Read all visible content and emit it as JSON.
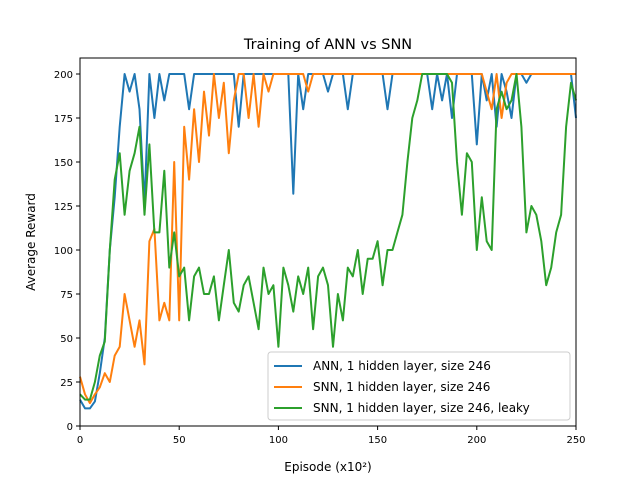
{
  "chart_data": {
    "type": "line",
    "title": "Training of ANN vs SNN",
    "xlabel": "Episode (x10²)",
    "ylabel": "Average Reward",
    "xlim": [
      0,
      250
    ],
    "ylim": [
      0,
      200
    ],
    "xticks": [
      0,
      50,
      100,
      150,
      200,
      250
    ],
    "yticks": [
      0,
      25,
      50,
      75,
      100,
      125,
      150,
      175,
      200
    ],
    "grid": false,
    "legend_position": "lower-right",
    "x": [
      0,
      2.5,
      5,
      7.5,
      10,
      12.5,
      15,
      17.5,
      20,
      22.5,
      25,
      27.5,
      30,
      32.5,
      35,
      37.5,
      40,
      42.5,
      45,
      47.5,
      50,
      52.5,
      55,
      57.5,
      60,
      62.5,
      65,
      67.5,
      70,
      72.5,
      75,
      77.5,
      80,
      82.5,
      85,
      87.5,
      90,
      92.5,
      95,
      97.5,
      100,
      102.5,
      105,
      107.5,
      110,
      112.5,
      115,
      117.5,
      120,
      122.5,
      125,
      127.5,
      130,
      132.5,
      135,
      137.5,
      140,
      142.5,
      145,
      147.5,
      150,
      152.5,
      155,
      157.5,
      160,
      162.5,
      165,
      167.5,
      170,
      172.5,
      175,
      177.5,
      180,
      182.5,
      185,
      187.5,
      190,
      192.5,
      195,
      197.5,
      200,
      202.5,
      205,
      207.5,
      210,
      212.5,
      215,
      217.5,
      220,
      222.5,
      225,
      227.5,
      230,
      232.5,
      235,
      237.5,
      240,
      242.5,
      245,
      247.5,
      250
    ],
    "series": [
      {
        "name": "ANN, 1 hidden layer, size 246",
        "color": "#1f77b4",
        "values": [
          15,
          10,
          10,
          14,
          30,
          50,
          100,
          130,
          170,
          200,
          190,
          200,
          180,
          126,
          200,
          175,
          200,
          185,
          200,
          200,
          200,
          200,
          180,
          200,
          200,
          200,
          200,
          200,
          200,
          200,
          200,
          200,
          170,
          200,
          200,
          200,
          200,
          200,
          200,
          200,
          200,
          200,
          200,
          132,
          200,
          180,
          200,
          200,
          200,
          200,
          190,
          200,
          200,
          200,
          180,
          200,
          200,
          200,
          200,
          200,
          200,
          200,
          180,
          200,
          200,
          200,
          200,
          200,
          200,
          200,
          200,
          180,
          200,
          185,
          200,
          175,
          200,
          200,
          200,
          200,
          160,
          200,
          185,
          200,
          170,
          200,
          190,
          175,
          200,
          200,
          195,
          200,
          200,
          200,
          200,
          200,
          200,
          200,
          200,
          200,
          175
        ]
      },
      {
        "name": "SNN, 1 hidden layer, size 246",
        "color": "#ff7f0e",
        "values": [
          28,
          18,
          13,
          18,
          22,
          30,
          25,
          40,
          45,
          75,
          60,
          45,
          60,
          35,
          105,
          112,
          60,
          70,
          60,
          150,
          60,
          170,
          140,
          180,
          150,
          190,
          165,
          200,
          175,
          195,
          155,
          185,
          200,
          200,
          175,
          200,
          170,
          200,
          190,
          200,
          200,
          200,
          200,
          200,
          200,
          200,
          190,
          200,
          200,
          200,
          200,
          200,
          200,
          200,
          200,
          200,
          200,
          200,
          200,
          200,
          200,
          200,
          200,
          200,
          200,
          200,
          200,
          200,
          200,
          200,
          200,
          200,
          200,
          200,
          200,
          200,
          200,
          200,
          200,
          200,
          200,
          200,
          190,
          180,
          200,
          175,
          195,
          200,
          200,
          200,
          200,
          200,
          200,
          200,
          200,
          200,
          200,
          200,
          200,
          200,
          200
        ]
      },
      {
        "name": "SNN, 1 hidden layer, size 246, leaky",
        "color": "#2ca02c",
        "values": [
          18,
          15,
          15,
          25,
          40,
          48,
          100,
          140,
          155,
          120,
          145,
          155,
          170,
          120,
          160,
          110,
          110,
          145,
          90,
          110,
          85,
          90,
          60,
          85,
          90,
          75,
          75,
          85,
          60,
          80,
          100,
          70,
          65,
          80,
          85,
          70,
          55,
          90,
          75,
          80,
          45,
          90,
          80,
          65,
          85,
          75,
          90,
          55,
          85,
          90,
          80,
          45,
          75,
          60,
          90,
          85,
          100,
          75,
          95,
          95,
          105,
          80,
          100,
          100,
          110,
          120,
          150,
          175,
          185,
          200,
          200,
          200,
          200,
          200,
          200,
          195,
          150,
          120,
          155,
          150,
          100,
          130,
          105,
          100,
          180,
          190,
          180,
          185,
          200,
          170,
          110,
          125,
          120,
          105,
          80,
          90,
          110,
          120,
          170,
          195,
          185
        ]
      }
    ]
  }
}
